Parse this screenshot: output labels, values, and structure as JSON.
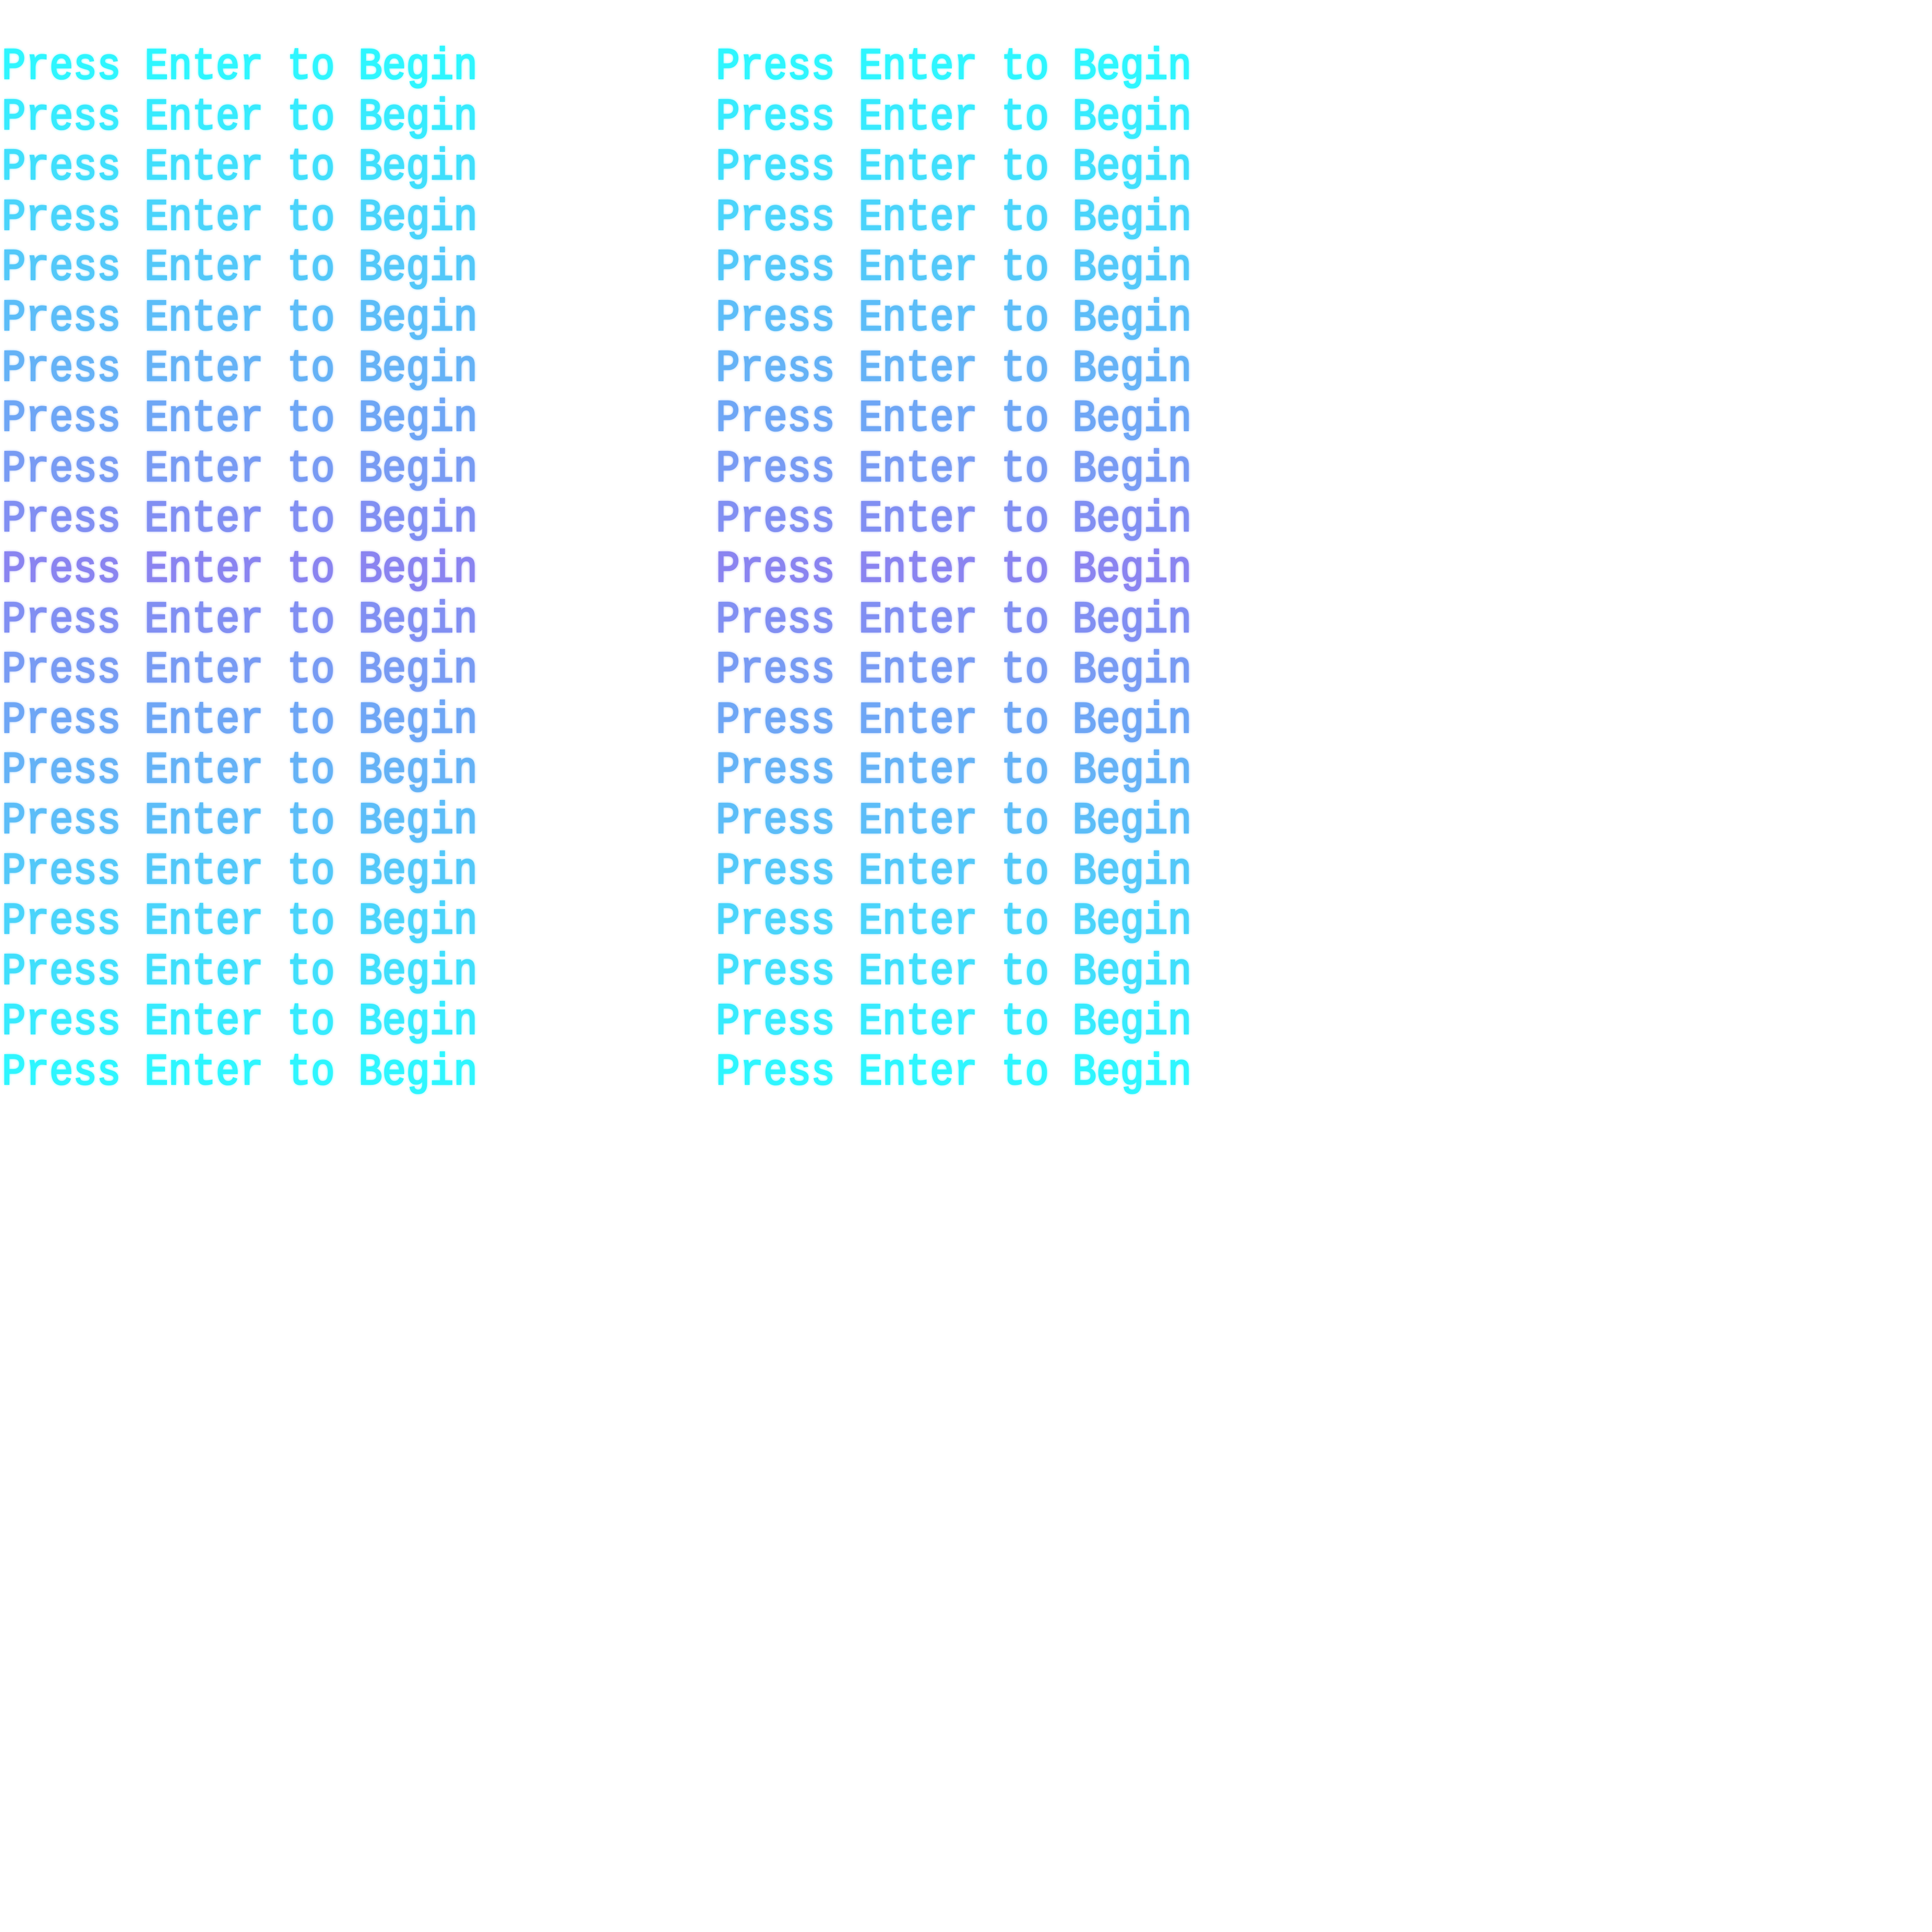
{
  "screen": {
    "message": "Press Enter to Begin",
    "rows_per_column": 21,
    "columns": 2,
    "colors": {
      "edge": "#2ef6ff",
      "middle": "#8a84f0",
      "background": "#ffffff"
    }
  }
}
